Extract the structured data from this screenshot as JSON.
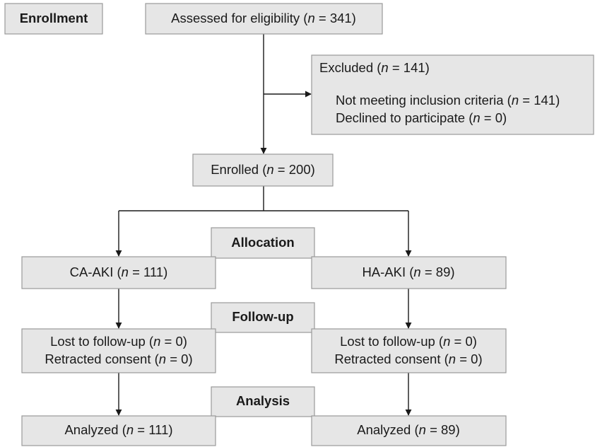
{
  "sections": {
    "enrollment": "Enrollment",
    "allocation": "Allocation",
    "follow_up": "Follow-up",
    "analysis": "Analysis"
  },
  "nodes": [
    {
      "lines": [
        [
          "Assessed for eligibility (",
          "n",
          " = 341)"
        ]
      ]
    },
    {
      "lines": [
        [
          "Excluded (",
          "n",
          " = 141)"
        ],
        [
          "Not meeting inclusion criteria (",
          "n",
          " = 141)"
        ],
        [
          "Declined to participate (",
          "n",
          " = 0)"
        ]
      ]
    },
    {
      "lines": [
        [
          "Enrolled (",
          "n",
          " = 200)"
        ]
      ]
    },
    {
      "lines": [
        [
          "CA-AKI (",
          "n",
          " = 111)"
        ]
      ]
    },
    {
      "lines": [
        [
          "HA-AKI (",
          "n",
          " = 89)"
        ]
      ]
    },
    {
      "lines": [
        [
          "Lost to follow-up (",
          "n",
          " = 0)"
        ],
        [
          "Retracted consent (",
          "n",
          " = 0)"
        ]
      ]
    },
    {
      "lines": [
        [
          "Lost to follow-up (",
          "n",
          " = 0)"
        ],
        [
          "Retracted consent (",
          "n",
          " = 0)"
        ]
      ]
    },
    {
      "lines": [
        [
          "Analyzed (",
          "n",
          " = 111)"
        ]
      ]
    },
    {
      "lines": [
        [
          "Analyzed (",
          "n",
          " = 89)"
        ]
      ]
    }
  ]
}
